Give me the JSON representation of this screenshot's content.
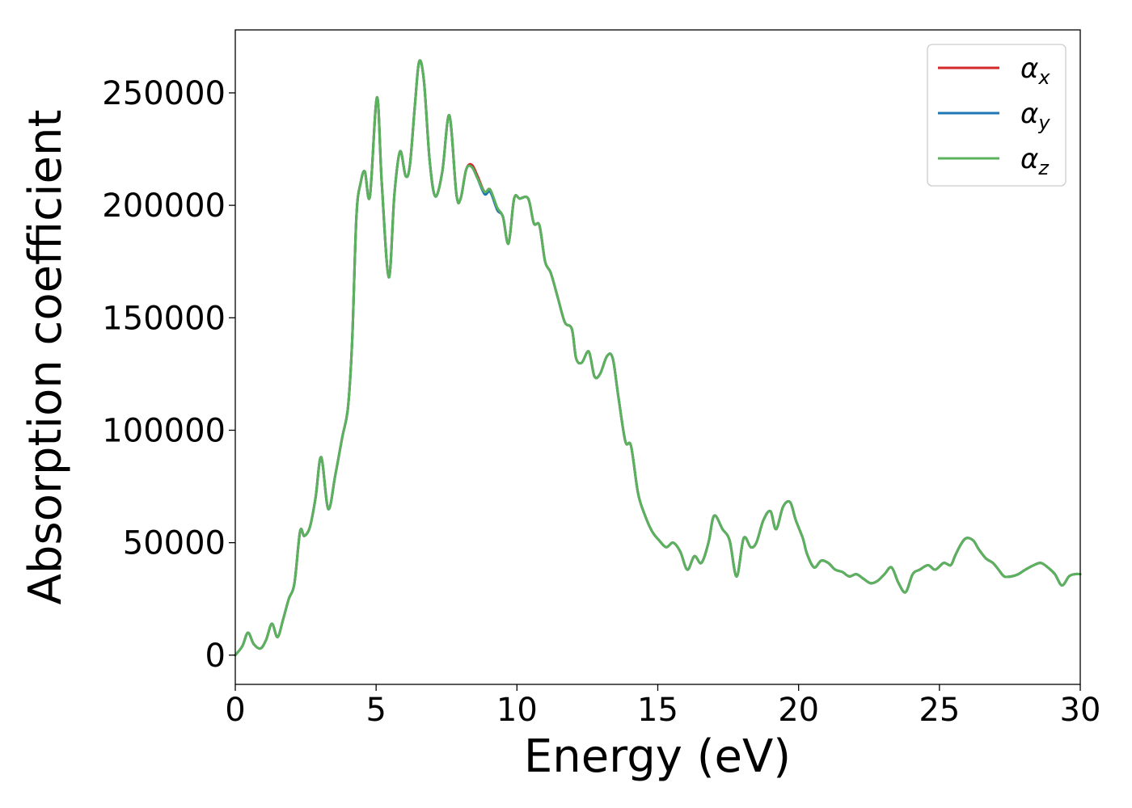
{
  "chart_data": {
    "type": "line",
    "xlabel": "Energy (eV)",
    "ylabel": "Absorption coefficient",
    "xlim": [
      0,
      30
    ],
    "ylim": [
      -13000,
      278000
    ],
    "xticks": [
      0,
      5,
      10,
      15,
      20,
      25,
      30
    ],
    "xtick_labels": [
      "0",
      "5",
      "10",
      "15",
      "20",
      "25",
      "30"
    ],
    "yticks": [
      0,
      50000,
      100000,
      150000,
      200000,
      250000
    ],
    "ytick_labels": [
      "0",
      "50000",
      "100000",
      "150000",
      "200000",
      "250000"
    ],
    "grid": false,
    "legend_position": "top-right",
    "x": [
      0.0,
      0.25,
      0.45,
      0.65,
      0.9,
      1.1,
      1.3,
      1.5,
      1.7,
      1.9,
      2.1,
      2.3,
      2.45,
      2.65,
      2.85,
      3.05,
      3.3,
      3.55,
      3.8,
      4.0,
      4.15,
      4.3,
      4.45,
      4.6,
      4.78,
      5.03,
      5.2,
      5.45,
      5.65,
      5.85,
      6.05,
      6.2,
      6.38,
      6.53,
      6.7,
      6.9,
      7.1,
      7.35,
      7.6,
      7.85,
      8.0,
      8.2,
      8.4,
      8.6,
      8.85,
      9.05,
      9.3,
      9.5,
      9.7,
      9.9,
      10.1,
      10.4,
      10.6,
      10.8,
      11.0,
      11.2,
      11.45,
      11.7,
      11.95,
      12.1,
      12.3,
      12.55,
      12.75,
      12.95,
      13.2,
      13.4,
      13.6,
      13.85,
      14.05,
      14.3,
      14.55,
      14.8,
      15.05,
      15.3,
      15.55,
      15.8,
      16.05,
      16.3,
      16.55,
      16.8,
      17.0,
      17.3,
      17.55,
      17.8,
      18.05,
      18.3,
      18.5,
      18.75,
      19.0,
      19.2,
      19.45,
      19.7,
      19.9,
      20.15,
      20.3,
      20.55,
      20.8,
      21.05,
      21.3,
      21.55,
      21.8,
      22.05,
      22.3,
      22.55,
      22.8,
      23.05,
      23.3,
      23.55,
      23.8,
      24.05,
      24.3,
      24.6,
      24.85,
      25.15,
      25.4,
      25.55,
      25.75,
      25.95,
      26.2,
      26.4,
      26.65,
      26.9,
      27.1,
      27.3,
      27.55,
      27.8,
      28.05,
      28.35,
      28.6,
      28.85,
      29.1,
      29.35,
      29.6,
      29.8,
      30.0
    ],
    "series": [
      {
        "name": "αx",
        "color": "#d62728",
        "values": [
          0,
          4000,
          10000,
          5000,
          3000,
          7000,
          14000,
          8000,
          16000,
          25000,
          32000,
          55000,
          53000,
          57000,
          70000,
          88000,
          65000,
          80000,
          97000,
          110000,
          140000,
          195000,
          210000,
          215000,
          204000,
          248000,
          210000,
          168000,
          205000,
          224000,
          213000,
          218000,
          245000,
          264000,
          255000,
          220000,
          204000,
          215000,
          240000,
          205000,
          203000,
          216000,
          218000,
          213000,
          206000,
          207000,
          198000,
          195000,
          183000,
          203000,
          203000,
          203000,
          192000,
          191000,
          175000,
          170000,
          159000,
          148000,
          145000,
          132000,
          130000,
          135000,
          124000,
          125000,
          133000,
          132000,
          115000,
          95000,
          93000,
          72000,
          62000,
          55000,
          51000,
          48000,
          50000,
          46000,
          38000,
          44000,
          41000,
          50000,
          62000,
          56000,
          51000,
          35000,
          52000,
          48000,
          50000,
          60000,
          64000,
          56000,
          66000,
          68000,
          60000,
          52000,
          45000,
          39000,
          42000,
          41000,
          38000,
          37000,
          35000,
          36000,
          34000,
          32000,
          33000,
          36000,
          39000,
          32000,
          28000,
          36000,
          38000,
          40000,
          38000,
          41000,
          40000,
          44000,
          49000,
          52000,
          51000,
          47000,
          43000,
          41000,
          38000,
          35000,
          35000,
          36000,
          38000,
          40000,
          41000,
          39000,
          36000,
          31000,
          35000,
          36000,
          36000
        ]
      },
      {
        "name": "αy",
        "color": "#1f77b4",
        "values": [
          0,
          4000,
          10000,
          5000,
          3000,
          7000,
          14000,
          8000,
          16000,
          25000,
          32000,
          55000,
          53000,
          57000,
          70000,
          88000,
          65000,
          80000,
          97000,
          110000,
          140000,
          195000,
          210000,
          215000,
          204000,
          248000,
          210000,
          168000,
          205000,
          224000,
          213000,
          218000,
          245000,
          264000,
          255000,
          220000,
          204000,
          215000,
          240000,
          205000,
          203000,
          216000,
          217000,
          212000,
          205000,
          206000,
          198000,
          195000,
          183000,
          203000,
          203000,
          203000,
          192000,
          191000,
          175000,
          170000,
          159000,
          148000,
          145000,
          132000,
          130000,
          135000,
          124000,
          125000,
          133000,
          132000,
          115000,
          95000,
          93000,
          72000,
          62000,
          55000,
          51000,
          48000,
          50000,
          46000,
          38000,
          44000,
          41000,
          50000,
          62000,
          56000,
          51000,
          35000,
          52000,
          48000,
          50000,
          60000,
          64000,
          56000,
          66000,
          68000,
          60000,
          52000,
          45000,
          39000,
          42000,
          41000,
          38000,
          37000,
          35000,
          36000,
          34000,
          32000,
          33000,
          36000,
          39000,
          32000,
          28000,
          36000,
          38000,
          40000,
          38000,
          41000,
          40000,
          44000,
          49000,
          52000,
          51000,
          47000,
          43000,
          41000,
          38000,
          35000,
          35000,
          36000,
          38000,
          40000,
          41000,
          39000,
          36000,
          31000,
          35000,
          36000,
          36000
        ]
      },
      {
        "name": "αz",
        "color": "#5cb25c",
        "values": [
          0,
          4000,
          10000,
          5000,
          3000,
          7000,
          14000,
          8000,
          16000,
          25000,
          32000,
          55000,
          53000,
          57000,
          70000,
          88000,
          65000,
          80000,
          97000,
          110000,
          140000,
          195000,
          210000,
          215000,
          204000,
          248000,
          210000,
          168000,
          205000,
          224000,
          213000,
          218000,
          245000,
          264000,
          255000,
          220000,
          204000,
          215000,
          240000,
          205000,
          203000,
          216000,
          217000,
          212000,
          206000,
          207000,
          199000,
          195000,
          183000,
          203000,
          203000,
          203000,
          192000,
          191000,
          175000,
          170000,
          159000,
          148000,
          145000,
          132000,
          130000,
          135000,
          124000,
          125000,
          133000,
          132000,
          115000,
          95000,
          93000,
          72000,
          62000,
          55000,
          51000,
          48000,
          50000,
          46000,
          38000,
          44000,
          41000,
          50000,
          62000,
          56000,
          51000,
          35000,
          52000,
          48000,
          50000,
          60000,
          64000,
          56000,
          66000,
          68000,
          60000,
          52000,
          45000,
          39000,
          42000,
          41000,
          38000,
          37000,
          35000,
          36000,
          34000,
          32000,
          33000,
          36000,
          39000,
          32000,
          28000,
          36000,
          38000,
          40000,
          38000,
          41000,
          40000,
          44000,
          49000,
          52000,
          51000,
          47000,
          43000,
          41000,
          38000,
          35000,
          35000,
          36000,
          38000,
          40000,
          41000,
          39000,
          36000,
          31000,
          35000,
          36000,
          36000
        ]
      }
    ],
    "legend": [
      {
        "symbol": "α",
        "subscript": "x"
      },
      {
        "symbol": "α",
        "subscript": "y"
      },
      {
        "symbol": "α",
        "subscript": "z"
      }
    ]
  }
}
